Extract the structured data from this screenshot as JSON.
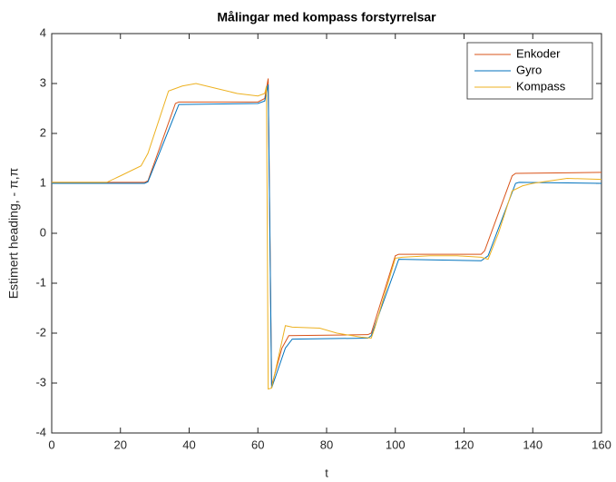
{
  "chart_data": {
    "type": "line",
    "title": "Målingar med kompass forstyrrelsar",
    "xlabel": "t",
    "ylabel": "Estimert heading, - π,π",
    "xlim": [
      0,
      160
    ],
    "xticks": [
      0,
      20,
      40,
      60,
      80,
      100,
      120,
      140,
      160
    ],
    "ylim": [
      -4,
      4
    ],
    "yticks": [
      -4,
      -3,
      -2,
      -1,
      0,
      1,
      2,
      3,
      4
    ],
    "grid": false,
    "legend": "top-right",
    "series": [
      {
        "name": "Enkoder",
        "color": "#D95319",
        "x": [
          0,
          27,
          28,
          36,
          37,
          60,
          62,
          63,
          64,
          67,
          69,
          92,
          93,
          100,
          101,
          125,
          126,
          134,
          135,
          160
        ],
        "values": [
          1.02,
          1.02,
          1.05,
          2.6,
          2.63,
          2.63,
          2.7,
          3.1,
          -3.05,
          -2.3,
          -2.05,
          -2.03,
          -2.0,
          -0.45,
          -0.42,
          -0.42,
          -0.35,
          1.15,
          1.2,
          1.22
        ]
      },
      {
        "name": "Gyro",
        "color": "#0072BD",
        "x": [
          0,
          27,
          28,
          37,
          60,
          62,
          63,
          64,
          68,
          70,
          92,
          93,
          101,
          125,
          127,
          135,
          136,
          160
        ],
        "values": [
          1.0,
          1.0,
          1.03,
          2.58,
          2.6,
          2.65,
          2.98,
          -3.1,
          -2.3,
          -2.12,
          -2.1,
          -2.05,
          -0.52,
          -0.55,
          -0.45,
          1.0,
          1.02,
          1.0
        ]
      },
      {
        "name": "Kompass",
        "color": "#EDB120",
        "x": [
          0,
          16,
          20,
          26,
          28,
          34,
          38,
          42,
          48,
          54,
          60,
          62,
          62.5,
          63,
          64,
          68,
          70,
          78,
          83,
          90,
          93,
          94,
          100,
          102,
          110,
          118,
          125,
          127,
          130,
          134,
          137,
          140,
          150,
          160
        ],
        "values": [
          1.02,
          1.02,
          1.15,
          1.35,
          1.6,
          2.85,
          2.95,
          3.0,
          2.9,
          2.8,
          2.75,
          2.8,
          2.95,
          -3.12,
          -3.1,
          -1.85,
          -1.88,
          -1.9,
          -2.0,
          -2.08,
          -2.1,
          -1.9,
          -0.5,
          -0.48,
          -0.45,
          -0.45,
          -0.48,
          -0.52,
          0,
          0.85,
          0.95,
          1.0,
          1.1,
          1.08
        ]
      }
    ]
  }
}
